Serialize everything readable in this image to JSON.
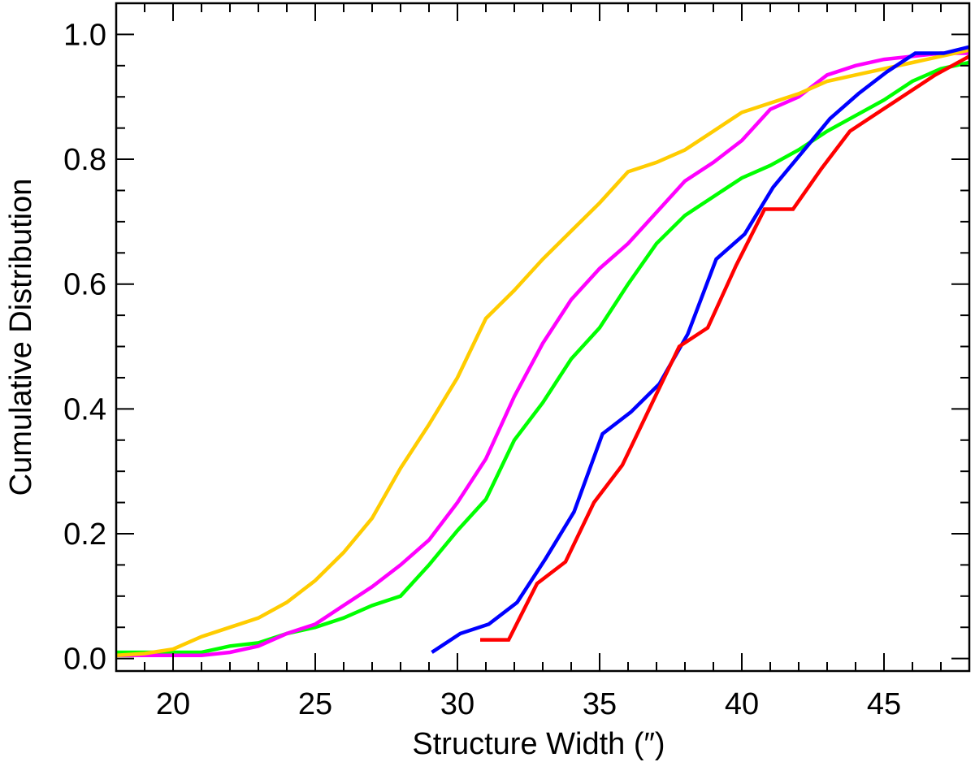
{
  "chart_data": {
    "type": "line",
    "xlabel": "Structure Width (″)",
    "ylabel": "Cumulative Distribution",
    "xlim": [
      18,
      48
    ],
    "ylim": [
      -0.02,
      1.05
    ],
    "x_ticks": [
      {
        "value": 20,
        "label": "20"
      },
      {
        "value": 25,
        "label": "25"
      },
      {
        "value": 30,
        "label": "30"
      },
      {
        "value": 35,
        "label": "35"
      },
      {
        "value": 40,
        "label": "40"
      },
      {
        "value": 45,
        "label": "45"
      }
    ],
    "y_ticks": [
      {
        "value": 0.0,
        "label": "0.0"
      },
      {
        "value": 0.2,
        "label": "0.2"
      },
      {
        "value": 0.4,
        "label": "0.4"
      },
      {
        "value": 0.6,
        "label": "0.6"
      },
      {
        "value": 0.8,
        "label": "0.8"
      },
      {
        "value": 1.0,
        "label": "1.0"
      }
    ],
    "x_minor_step": 1,
    "y_minor_step": 0.05,
    "grid": false,
    "series": [
      {
        "color": "#00ff00",
        "points": [
          [
            18,
            0.01
          ],
          [
            19,
            0.01
          ],
          [
            20,
            0.01
          ],
          [
            21,
            0.01
          ],
          [
            22,
            0.02
          ],
          [
            23,
            0.025
          ],
          [
            24,
            0.04
          ],
          [
            25,
            0.05
          ],
          [
            26,
            0.065
          ],
          [
            27,
            0.085
          ],
          [
            28,
            0.1
          ],
          [
            29,
            0.15
          ],
          [
            30,
            0.205
          ],
          [
            31,
            0.255
          ],
          [
            32,
            0.35
          ],
          [
            33,
            0.41
          ],
          [
            34,
            0.48
          ],
          [
            35,
            0.53
          ],
          [
            36,
            0.6
          ],
          [
            37,
            0.665
          ],
          [
            38,
            0.71
          ],
          [
            39,
            0.74
          ],
          [
            40,
            0.77
          ],
          [
            41,
            0.79
          ],
          [
            42,
            0.815
          ],
          [
            43,
            0.845
          ],
          [
            44,
            0.87
          ],
          [
            45,
            0.895
          ],
          [
            46,
            0.925
          ],
          [
            47,
            0.945
          ],
          [
            48,
            0.955
          ]
        ]
      },
      {
        "color": "#ff00ff",
        "points": [
          [
            18,
            0.005
          ],
          [
            19,
            0.005
          ],
          [
            20,
            0.005
          ],
          [
            21,
            0.005
          ],
          [
            22,
            0.01
          ],
          [
            23,
            0.02
          ],
          [
            24,
            0.04
          ],
          [
            25,
            0.055
          ],
          [
            26,
            0.085
          ],
          [
            27,
            0.115
          ],
          [
            28,
            0.15
          ],
          [
            29,
            0.19
          ],
          [
            30,
            0.25
          ],
          [
            31,
            0.32
          ],
          [
            32,
            0.42
          ],
          [
            33,
            0.505
          ],
          [
            34,
            0.575
          ],
          [
            35,
            0.625
          ],
          [
            36,
            0.665
          ],
          [
            37,
            0.715
          ],
          [
            38,
            0.765
          ],
          [
            39,
            0.795
          ],
          [
            40,
            0.83
          ],
          [
            41,
            0.88
          ],
          [
            42,
            0.9
          ],
          [
            43,
            0.935
          ],
          [
            44,
            0.95
          ],
          [
            45,
            0.96
          ],
          [
            46,
            0.965
          ],
          [
            47,
            0.97
          ],
          [
            48,
            0.97
          ]
        ]
      },
      {
        "color": "#ffcc00",
        "points": [
          [
            18,
            0.005
          ],
          [
            19,
            0.008
          ],
          [
            20,
            0.015
          ],
          [
            21,
            0.035
          ],
          [
            22,
            0.05
          ],
          [
            23,
            0.065
          ],
          [
            24,
            0.09
          ],
          [
            25,
            0.125
          ],
          [
            26,
            0.17
          ],
          [
            27,
            0.225
          ],
          [
            28,
            0.305
          ],
          [
            29,
            0.375
          ],
          [
            30,
            0.45
          ],
          [
            31,
            0.545
          ],
          [
            32,
            0.59
          ],
          [
            33,
            0.64
          ],
          [
            34,
            0.685
          ],
          [
            35,
            0.73
          ],
          [
            36,
            0.78
          ],
          [
            37,
            0.795
          ],
          [
            38,
            0.815
          ],
          [
            39,
            0.845
          ],
          [
            40,
            0.875
          ],
          [
            41,
            0.89
          ],
          [
            42,
            0.905
          ],
          [
            43,
            0.925
          ],
          [
            44,
            0.935
          ],
          [
            45,
            0.945
          ],
          [
            46,
            0.955
          ],
          [
            47,
            0.965
          ],
          [
            48,
            0.975
          ]
        ]
      },
      {
        "color": "#0000ff",
        "points": [
          [
            29.1,
            0.01
          ],
          [
            30.1,
            0.04
          ],
          [
            31.1,
            0.055
          ],
          [
            32.1,
            0.09
          ],
          [
            33.1,
            0.16
          ],
          [
            34.1,
            0.235
          ],
          [
            35.1,
            0.36
          ],
          [
            36.1,
            0.395
          ],
          [
            37.1,
            0.44
          ],
          [
            38.1,
            0.52
          ],
          [
            39.1,
            0.64
          ],
          [
            40.1,
            0.68
          ],
          [
            41.1,
            0.755
          ],
          [
            42.1,
            0.81
          ],
          [
            43.1,
            0.865
          ],
          [
            44.1,
            0.905
          ],
          [
            45.1,
            0.94
          ],
          [
            46.1,
            0.97
          ],
          [
            47.1,
            0.97
          ],
          [
            48,
            0.98
          ]
        ]
      },
      {
        "color": "#ff0000",
        "points": [
          [
            30.8,
            0.03
          ],
          [
            31.8,
            0.03
          ],
          [
            32.8,
            0.12
          ],
          [
            33.8,
            0.155
          ],
          [
            34.8,
            0.25
          ],
          [
            35.8,
            0.31
          ],
          [
            36.8,
            0.405
          ],
          [
            37.8,
            0.5
          ],
          [
            38.8,
            0.53
          ],
          [
            39.8,
            0.63
          ],
          [
            40.8,
            0.72
          ],
          [
            41.8,
            0.72
          ],
          [
            42.8,
            0.785
          ],
          [
            43.8,
            0.845
          ],
          [
            44.8,
            0.875
          ],
          [
            45.8,
            0.905
          ],
          [
            46.8,
            0.935
          ],
          [
            48,
            0.965
          ]
        ]
      }
    ]
  }
}
